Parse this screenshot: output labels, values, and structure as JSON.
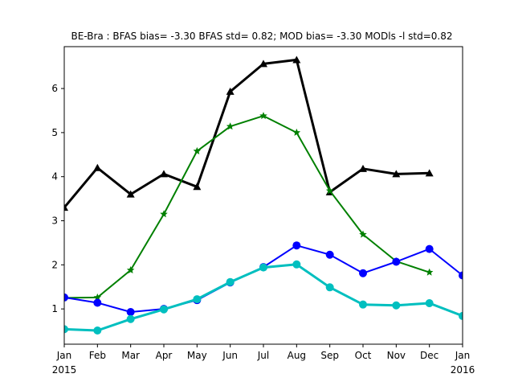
{
  "chart_data": {
    "type": "line",
    "title": "BE-Bra   : BFAS bias= -3.30 BFAS std= 0.82; MOD bias= -3.30 MODls -l std=0.82",
    "xlabel": "",
    "ylabel": "",
    "x_ticks": [
      {
        "label": "Jan",
        "sublabel": "2015",
        "x": 0
      },
      {
        "label": "Feb",
        "sublabel": "",
        "x": 1
      },
      {
        "label": "Mar",
        "sublabel": "",
        "x": 2
      },
      {
        "label": "Apr",
        "sublabel": "",
        "x": 3
      },
      {
        "label": "May",
        "sublabel": "",
        "x": 4
      },
      {
        "label": "Jun",
        "sublabel": "",
        "x": 5
      },
      {
        "label": "Jul",
        "sublabel": "",
        "x": 6
      },
      {
        "label": "Aug",
        "sublabel": "",
        "x": 7
      },
      {
        "label": "Sep",
        "sublabel": "",
        "x": 8
      },
      {
        "label": "Oct",
        "sublabel": "",
        "x": 9
      },
      {
        "label": "Nov",
        "sublabel": "",
        "x": 10
      },
      {
        "label": "Dec",
        "sublabel": "",
        "x": 11
      },
      {
        "label": "Jan",
        "sublabel": "2016",
        "x": 12
      }
    ],
    "y_ticks": [
      "1",
      "2",
      "3",
      "4",
      "5",
      "6"
    ],
    "xlim": [
      0,
      12
    ],
    "ylim": [
      0.2,
      6.95
    ],
    "grid": false,
    "series": [
      {
        "color": "#000000",
        "marker": "triangle",
        "x": [
          0,
          1,
          2,
          3,
          4,
          5,
          6,
          7,
          8,
          9,
          10,
          11
        ],
        "values": [
          3.3,
          4.2,
          3.6,
          4.06,
          3.77,
          5.93,
          6.56,
          6.65,
          3.65,
          4.18,
          4.06,
          4.08
        ]
      },
      {
        "color": "#008000",
        "marker": "star",
        "x": [
          0,
          1,
          2,
          3,
          4,
          5,
          6,
          7,
          8,
          9,
          10,
          11
        ],
        "values": [
          1.25,
          1.26,
          1.88,
          3.15,
          4.58,
          5.14,
          5.38,
          5.0,
          3.68,
          2.69,
          2.08,
          1.83
        ]
      },
      {
        "color": "#0000ff",
        "marker": "circle",
        "x": [
          0,
          1,
          2,
          3,
          4,
          5,
          6,
          7,
          8,
          9,
          10,
          11,
          12
        ],
        "values": [
          1.26,
          1.14,
          0.93,
          1.0,
          1.2,
          1.6,
          1.95,
          2.44,
          2.23,
          1.81,
          2.07,
          2.36,
          1.76
        ]
      },
      {
        "color": "#00bfbf",
        "marker": "circle",
        "x": [
          0,
          1,
          2,
          3,
          4,
          5,
          6,
          7,
          8,
          9,
          10,
          11,
          12
        ],
        "values": [
          0.54,
          0.51,
          0.77,
          0.99,
          1.22,
          1.61,
          1.94,
          2.01,
          1.49,
          1.1,
          1.08,
          1.13,
          0.84
        ]
      }
    ]
  }
}
